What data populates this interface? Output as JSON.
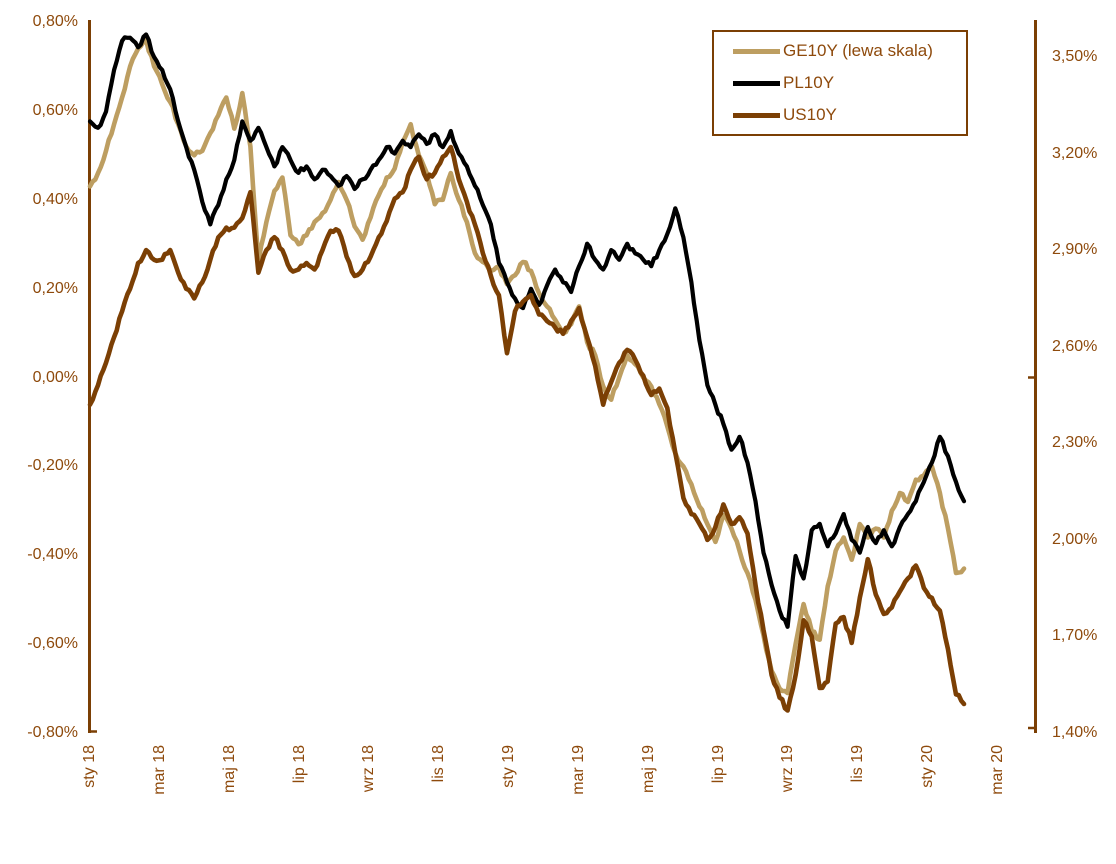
{
  "chart_data": {
    "type": "line",
    "title": "",
    "grid": "off",
    "legend_position": "top-right",
    "x_tick_labels": [
      "sty 18",
      "mar 18",
      "maj 18",
      "lip 18",
      "wrz 18",
      "lis 18",
      "sty 19",
      "mar 19",
      "maj 19",
      "lip 19",
      "wrz 19",
      "lis 19",
      "sty 20",
      "mar 20"
    ],
    "left_axis": {
      "tick_labels": [
        "0,80%",
        "0,60%",
        "0,40%",
        "0,20%",
        "0,00%",
        "-0,20%",
        "-0,40%",
        "-0,60%",
        "-0,80%"
      ],
      "max": 0.8,
      "min": -0.8,
      "step": 0.2
    },
    "right_axis": {
      "tick_labels": [
        "3,50%",
        "3,20%",
        "2,90%",
        "2,60%",
        "2,30%",
        "2,00%",
        "1,70%",
        "1,40%"
      ],
      "max": 3.5,
      "min": 1.4,
      "step": 0.3
    },
    "frequency": "weekly",
    "series": [
      {
        "name": "GE10Y (lewa skala)",
        "axis": "left",
        "color": "#BD9E61",
        "values": [
          0.43,
          0.46,
          0.51,
          0.57,
          0.63,
          0.7,
          0.74,
          0.76,
          0.7,
          0.66,
          0.62,
          0.57,
          0.52,
          0.5,
          0.51,
          0.55,
          0.59,
          0.63,
          0.56,
          0.64,
          0.52,
          0.26,
          0.35,
          0.42,
          0.45,
          0.32,
          0.3,
          0.32,
          0.35,
          0.37,
          0.4,
          0.44,
          0.4,
          0.34,
          0.31,
          0.36,
          0.41,
          0.45,
          0.47,
          0.53,
          0.57,
          0.5,
          0.46,
          0.39,
          0.4,
          0.46,
          0.4,
          0.35,
          0.28,
          0.26,
          0.24,
          0.25,
          0.21,
          0.23,
          0.26,
          0.24,
          0.19,
          0.16,
          0.13,
          0.1,
          0.12,
          0.16,
          0.08,
          0.05,
          -0.02,
          -0.05,
          0.0,
          0.05,
          0.03,
          0.0,
          -0.02,
          -0.06,
          -0.11,
          -0.17,
          -0.2,
          -0.24,
          -0.29,
          -0.33,
          -0.37,
          -0.31,
          -0.34,
          -0.39,
          -0.44,
          -0.5,
          -0.58,
          -0.66,
          -0.7,
          -0.71,
          -0.6,
          -0.51,
          -0.57,
          -0.59,
          -0.47,
          -0.39,
          -0.36,
          -0.41,
          -0.33,
          -0.36,
          -0.34,
          -0.36,
          -0.3,
          -0.26,
          -0.28,
          -0.23,
          -0.22,
          -0.2,
          -0.26,
          -0.34,
          -0.44,
          -0.43
        ]
      },
      {
        "name": "PL10Y",
        "axis": "right",
        "color": "#000000",
        "values": [
          3.3,
          3.28,
          3.33,
          3.46,
          3.55,
          3.56,
          3.53,
          3.57,
          3.5,
          3.46,
          3.4,
          3.3,
          3.22,
          3.15,
          3.05,
          2.98,
          3.04,
          3.12,
          3.18,
          3.3,
          3.24,
          3.28,
          3.22,
          3.16,
          3.22,
          3.18,
          3.14,
          3.16,
          3.12,
          3.15,
          3.13,
          3.1,
          3.13,
          3.09,
          3.12,
          3.15,
          3.18,
          3.22,
          3.2,
          3.24,
          3.22,
          3.26,
          3.23,
          3.26,
          3.22,
          3.27,
          3.2,
          3.16,
          3.1,
          3.04,
          2.98,
          2.86,
          2.8,
          2.75,
          2.72,
          2.78,
          2.73,
          2.79,
          2.84,
          2.8,
          2.77,
          2.85,
          2.92,
          2.87,
          2.84,
          2.9,
          2.87,
          2.92,
          2.89,
          2.87,
          2.85,
          2.9,
          2.95,
          3.03,
          2.94,
          2.8,
          2.62,
          2.48,
          2.42,
          2.36,
          2.28,
          2.32,
          2.24,
          2.12,
          1.96,
          1.86,
          1.78,
          1.73,
          1.95,
          1.88,
          2.03,
          2.05,
          1.98,
          2.02,
          2.08,
          2.0,
          1.96,
          2.04,
          1.99,
          2.03,
          1.98,
          2.04,
          2.08,
          2.12,
          2.18,
          2.24,
          2.32,
          2.26,
          2.18,
          2.12
        ]
      },
      {
        "name": "US10Y",
        "axis": "right",
        "color": "#7B3F04",
        "values": [
          2.42,
          2.48,
          2.55,
          2.63,
          2.71,
          2.78,
          2.86,
          2.9,
          2.87,
          2.87,
          2.9,
          2.83,
          2.78,
          2.75,
          2.8,
          2.87,
          2.94,
          2.97,
          2.97,
          3.0,
          3.08,
          2.83,
          2.9,
          2.94,
          2.9,
          2.84,
          2.84,
          2.86,
          2.84,
          2.9,
          2.96,
          2.96,
          2.88,
          2.82,
          2.84,
          2.88,
          2.94,
          2.99,
          3.06,
          3.08,
          3.15,
          3.19,
          3.12,
          3.14,
          3.19,
          3.22,
          3.12,
          3.05,
          2.98,
          2.89,
          2.82,
          2.76,
          2.58,
          2.71,
          2.74,
          2.76,
          2.7,
          2.68,
          2.66,
          2.64,
          2.68,
          2.72,
          2.63,
          2.54,
          2.42,
          2.49,
          2.55,
          2.59,
          2.56,
          2.51,
          2.45,
          2.47,
          2.41,
          2.27,
          2.13,
          2.08,
          2.05,
          2.0,
          2.04,
          2.11,
          2.05,
          2.07,
          2.02,
          1.86,
          1.72,
          1.58,
          1.51,
          1.47,
          1.58,
          1.75,
          1.7,
          1.54,
          1.56,
          1.74,
          1.76,
          1.68,
          1.82,
          1.94,
          1.83,
          1.77,
          1.79,
          1.84,
          1.88,
          1.92,
          1.85,
          1.82,
          1.78,
          1.66,
          1.52,
          1.49
        ]
      }
    ]
  },
  "legend": {
    "items": [
      {
        "label": "GE10Y (lewa skala)",
        "color": "#BD9E61"
      },
      {
        "label": "PL10Y",
        "color": "#000000"
      },
      {
        "label": "US10Y",
        "color": "#7B3F04"
      }
    ]
  },
  "colors": {
    "axis_text": "#8E4A0C",
    "axis_line": "#7B3F04",
    "background": "#FFFFFF"
  }
}
